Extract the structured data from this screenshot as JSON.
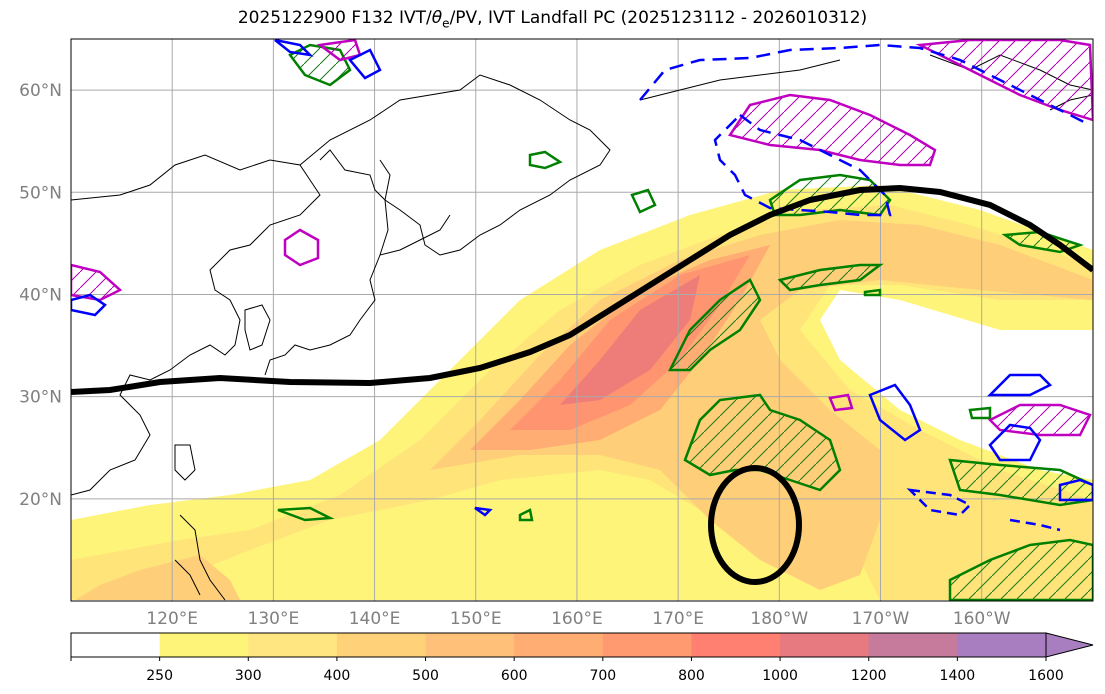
{
  "title": {
    "prefix": "2025122900 F132 IVT/",
    "theta": "θ",
    "sub": "e",
    "suffix": "/PV, IVT Landfall PC (2025123112 - 2026010312)"
  },
  "map": {
    "lat_labels": [
      "60°N",
      "50°N",
      "40°N",
      "30°N",
      "20°N"
    ],
    "lon_labels": [
      "120°E",
      "130°E",
      "140°E",
      "150°E",
      "160°E",
      "170°E",
      "180°W",
      "170°W",
      "160°W"
    ],
    "lon_range": [
      110,
      211
    ],
    "lat_range": [
      10,
      65
    ]
  },
  "colorbar": {
    "ticks": [
      "250",
      "300",
      "400",
      "500",
      "600",
      "700",
      "800",
      "1000",
      "1200",
      "1400",
      "1600"
    ],
    "colors": [
      "#ffffff",
      "#fff47a",
      "#ffe680",
      "#ffd27a",
      "#ffc07a",
      "#ffad73",
      "#ff9a70",
      "#ff7f70",
      "#e77a80",
      "#c67a9c",
      "#a87ec0",
      "#a87ec0"
    ]
  },
  "legend_colors": {
    "landfall_pc": "#000000",
    "theta_e": "#008000",
    "pv_positive": "#c000c0",
    "pv_negative": "#0000ff"
  }
}
